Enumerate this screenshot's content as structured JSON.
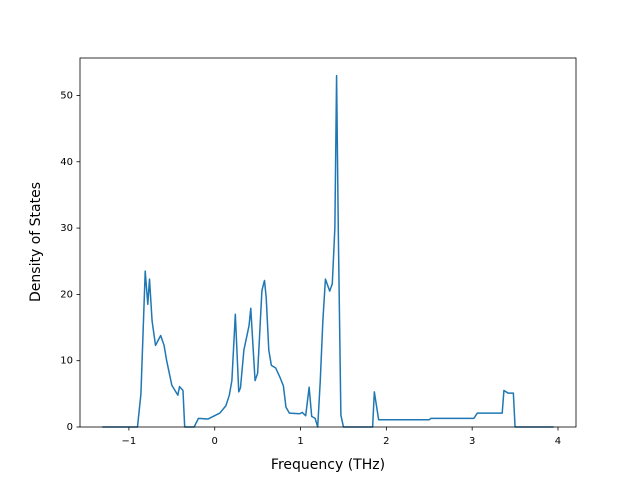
{
  "chart_data": {
    "type": "line",
    "x_label": "Frequency (THz)",
    "y_label": "Density of States",
    "x": [
      -1.31,
      -0.9,
      -0.86,
      -0.81,
      -0.78,
      -0.76,
      -0.73,
      -0.69,
      -0.63,
      -0.59,
      -0.56,
      -0.5,
      -0.43,
      -0.41,
      -0.37,
      -0.35,
      -0.24,
      -0.19,
      -0.08,
      0.06,
      0.13,
      0.17,
      0.2,
      0.24,
      0.28,
      0.3,
      0.34,
      0.4,
      0.42,
      0.47,
      0.5,
      0.55,
      0.58,
      0.6,
      0.63,
      0.66,
      0.71,
      0.76,
      0.8,
      0.83,
      0.87,
      0.99,
      1.02,
      1.06,
      1.1,
      1.13,
      1.17,
      1.2,
      1.23,
      1.26,
      1.29,
      1.34,
      1.37,
      1.4,
      1.42,
      1.44,
      1.47,
      1.5,
      1.84,
      1.86,
      1.91,
      2.5,
      2.52,
      3.02,
      3.06,
      3.35,
      3.37,
      3.42,
      3.48,
      3.5,
      3.95
    ],
    "series": [
      {
        "color": "#1f77b4",
        "values": [
          0,
          0,
          5,
          23.5,
          18.5,
          22.3,
          16,
          12.3,
          13.8,
          12.3,
          10,
          6.3,
          4.8,
          6.1,
          5.5,
          0,
          0,
          1.3,
          1.2,
          2.1,
          3.2,
          4.8,
          7,
          17,
          5.3,
          5.9,
          11.6,
          15.3,
          17.9,
          7,
          8.1,
          20.6,
          22.1,
          19.5,
          11.6,
          9.3,
          8.9,
          7.5,
          6.2,
          3,
          2.1,
          2,
          2.2,
          1.7,
          6,
          1.6,
          1.3,
          0,
          7,
          16,
          22.3,
          20.5,
          21.6,
          30,
          53,
          29.6,
          1.8,
          0,
          0,
          5.3,
          1.1,
          1.1,
          1.3,
          1.3,
          2.1,
          2.1,
          5.5,
          5.1,
          5.1,
          0,
          0
        ]
      }
    ],
    "xlim": [
      -1.57,
      4.21
    ],
    "ylim": [
      0,
      55.65
    ],
    "xticks": [
      {
        "value": -1,
        "label": "−1"
      },
      0,
      1,
      2,
      3,
      4
    ],
    "yticks": [
      0,
      10,
      20,
      30,
      40,
      50
    ]
  }
}
